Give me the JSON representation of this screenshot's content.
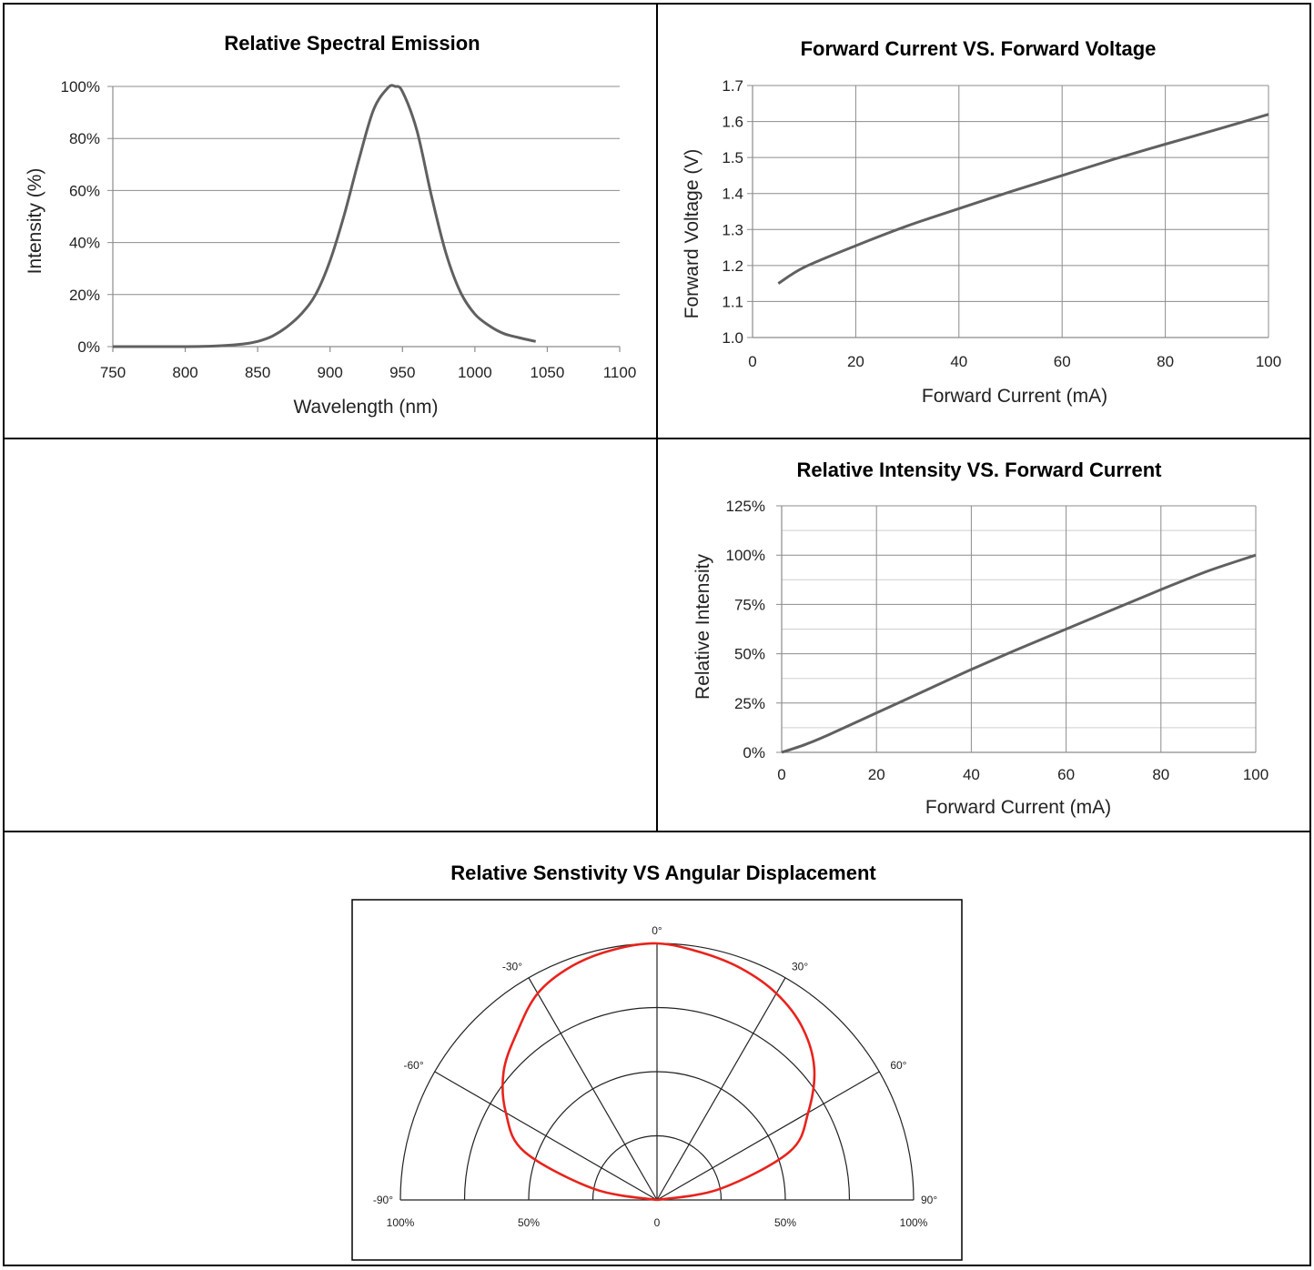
{
  "chart_data": [
    {
      "type": "line",
      "title": "Relative Spectral Emission",
      "xlabel": "Wavelength (nm)",
      "ylabel": "Intensity (%)",
      "xlim": [
        750,
        1100
      ],
      "ylim": [
        0,
        100
      ],
      "x_ticks": [
        "750",
        "800",
        "850",
        "900",
        "950",
        "1000",
        "1050",
        "1100"
      ],
      "y_ticks": [
        "0%",
        "20%",
        "40%",
        "60%",
        "80%",
        "100%"
      ],
      "grid": "horizontal",
      "series": [
        {
          "x": [
            750,
            800,
            820,
            840,
            850,
            860,
            870,
            880,
            890,
            900,
            910,
            920,
            930,
            940,
            945,
            950,
            960,
            970,
            980,
            990,
            1000,
            1010,
            1020,
            1030,
            1042
          ],
          "y": [
            0,
            0,
            0.2,
            1,
            2,
            4,
            7.5,
            12.5,
            20,
            33,
            51,
            72,
            91,
            99.5,
            100,
            98,
            83,
            58,
            36,
            21,
            12.5,
            8,
            5,
            3.5,
            2
          ]
        }
      ]
    },
    {
      "type": "line",
      "title": "Forward Current VS. Forward Voltage",
      "xlabel": "Forward Current (mA)",
      "ylabel": "Forward Voltage  (V)",
      "xlim": [
        0,
        100
      ],
      "ylim": [
        1.0,
        1.7
      ],
      "x_ticks": [
        "0",
        "20",
        "40",
        "60",
        "80",
        "100"
      ],
      "y_ticks": [
        "1.0",
        "1.1",
        "1.2",
        "1.3",
        "1.4",
        "1.5",
        "1.6",
        "1.7"
      ],
      "grid": "both",
      "series": [
        {
          "x": [
            5,
            10,
            20,
            30,
            40,
            50,
            60,
            70,
            80,
            90,
            100
          ],
          "y": [
            1.15,
            1.195,
            1.255,
            1.31,
            1.358,
            1.405,
            1.45,
            1.495,
            1.537,
            1.578,
            1.62
          ]
        }
      ]
    },
    {
      "type": "line",
      "title": "Relative Intensity VS. Forward Current",
      "xlabel": "Forward Current (mA)",
      "ylabel": "Relative Intensity",
      "xlim": [
        0,
        100
      ],
      "ylim": [
        0,
        125
      ],
      "x_ticks": [
        "0",
        "20",
        "40",
        "60",
        "80",
        "100"
      ],
      "y_ticks": [
        "0%",
        "25%",
        "50%",
        "75%",
        "100%",
        "125%"
      ],
      "grid": "both",
      "series": [
        {
          "x": [
            0,
            5,
            10,
            20,
            30,
            40,
            50,
            60,
            70,
            80,
            90,
            100
          ],
          "y": [
            0,
            4,
            9,
            20,
            31,
            42,
            52.5,
            62.5,
            72.5,
            82.5,
            92,
            100
          ]
        }
      ]
    },
    {
      "type": "polar",
      "title": "Relative Senstivity VS Angular Displacement",
      "angle_labels": [
        "-90°",
        "-60°",
        "-30°",
        "0°",
        "30°",
        "60°",
        "90°"
      ],
      "radial_labels": [
        "100%",
        "50%",
        "0",
        "50%",
        "100%"
      ],
      "series": [
        {
          "angle": [
            -90,
            -80,
            -70,
            -60,
            -50,
            -40,
            -30,
            -20,
            -10,
            0,
            10,
            20,
            30,
            40,
            50,
            60,
            70,
            80,
            90
          ],
          "r": [
            0,
            25,
            55,
            68,
            78,
            85,
            93,
            97,
            99,
            100,
            98,
            96,
            93,
            88,
            80,
            68,
            55,
            25,
            0
          ]
        }
      ]
    }
  ]
}
